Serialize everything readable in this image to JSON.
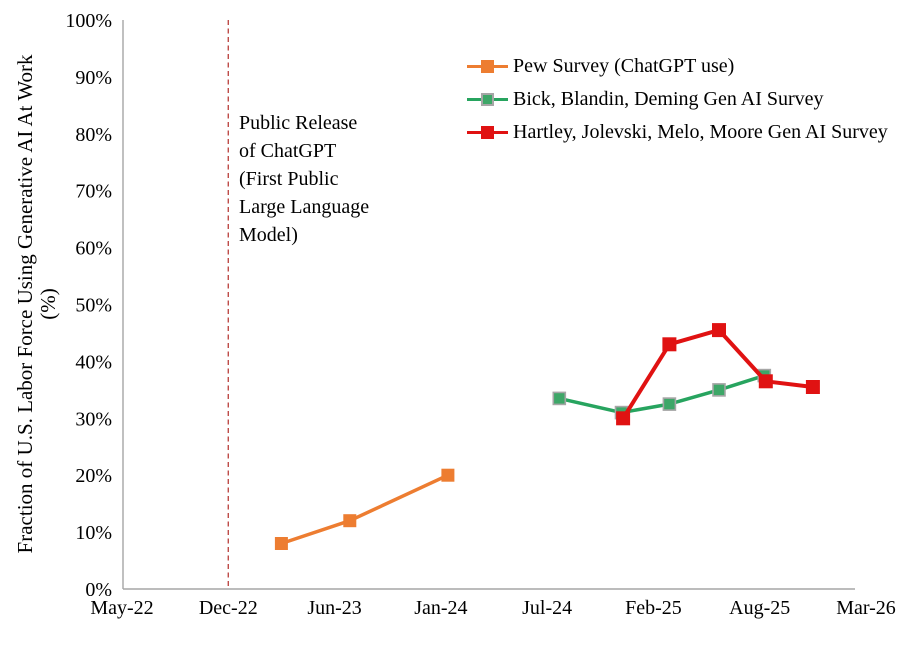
{
  "labels": {
    "y_axis_title": "Fraction of U.S. Labor Force Using Generative AI At Work",
    "y_axis_title_unit": "(%)",
    "annotation_text": "Public Release\nof ChatGPT\n(First Public\nLarge Language\nModel)"
  },
  "colors": {
    "background": "#FFFFFF",
    "axis_line": "#A6A6A6",
    "text": "#000000",
    "release_line": "#BE4B48",
    "pew_orange": "#ED7D31",
    "bbd_green": "#27A45F",
    "hjmm_red": "#E01212",
    "marker_outline_gray": "#A6A6A6"
  },
  "chart_data": {
    "type": "line",
    "title": "",
    "xlabel": "",
    "ylabel": "Fraction of U.S. Labor Force Using Generative AI At Work (%)",
    "x_unit_note": "x positions encoded as months since May-2022",
    "ylim": [
      0,
      100
    ],
    "xlim_months": [
      0,
      46
    ],
    "grid": false,
    "legend_position": "inside-top-right",
    "y_tick_suffix": "%",
    "y_ticks": [
      0,
      10,
      20,
      30,
      40,
      50,
      60,
      70,
      80,
      90,
      100
    ],
    "x_ticks": [
      {
        "label": "May-22",
        "month": 0
      },
      {
        "label": "Dec-22",
        "month": 7
      },
      {
        "label": "Jun-23",
        "month": 13
      },
      {
        "label": "Jan-24",
        "month": 20
      },
      {
        "label": "Jul-24",
        "month": 26
      },
      {
        "label": "Feb-25",
        "month": 33
      },
      {
        "label": "Aug-25",
        "month": 39
      },
      {
        "label": "Mar-26",
        "month": 46
      }
    ],
    "event_line": {
      "x_label": "Dec-22",
      "month": 7,
      "style": "dashed",
      "color": "#BE4B48",
      "annotation": "Public Release of ChatGPT (First Public Large Language Model)"
    },
    "series": [
      {
        "name": "Pew Survey (ChatGPT use)",
        "color": "#ED7D31",
        "line_width": 3.5,
        "marker": {
          "shape": "square",
          "size": 13,
          "fill": "#ED7D31",
          "stroke": "#ED7D31",
          "stroke_width": 0
        },
        "points": [
          {
            "date": "Mar-23",
            "month": 10,
            "value": 8
          },
          {
            "date": "Jul-23",
            "month": 14,
            "value": 12
          },
          {
            "date": "Feb-24",
            "month": 20.4,
            "value": 20
          }
        ]
      },
      {
        "name": "Bick, Blandin, Deming Gen AI Survey",
        "color": "#27A45F",
        "line_width": 3.5,
        "marker": {
          "shape": "square",
          "size": 12,
          "fill": "#3EA768",
          "stroke": "#A6A6A6",
          "stroke_width": 1.6
        },
        "points": [
          {
            "date": "Aug-24",
            "month": 26.8,
            "value": 33.5
          },
          {
            "date": "Dec-24",
            "month": 30.9,
            "value": 31
          },
          {
            "date": "Mar-25",
            "month": 33.9,
            "value": 32.5
          },
          {
            "date": "Jun-25",
            "month": 36.7,
            "value": 35
          },
          {
            "date": "Sep-25",
            "month": 39.3,
            "value": 37.5
          }
        ]
      },
      {
        "name": "Hartley, Jolevski, Melo, Moore Gen AI Survey",
        "color": "#E01212",
        "line_width": 4,
        "marker": {
          "shape": "square",
          "size": 14,
          "fill": "#E01212",
          "stroke": "#E01212",
          "stroke_width": 0
        },
        "points": [
          {
            "date": "Dec-24",
            "month": 31,
            "value": 30
          },
          {
            "date": "Mar-25",
            "month": 33.9,
            "value": 43
          },
          {
            "date": "Jun-25",
            "month": 36.7,
            "value": 45.5
          },
          {
            "date": "Sep-25",
            "month": 39.4,
            "value": 36.5
          },
          {
            "date": "Nov-25",
            "month": 42.5,
            "value": 35.5
          }
        ]
      }
    ]
  }
}
